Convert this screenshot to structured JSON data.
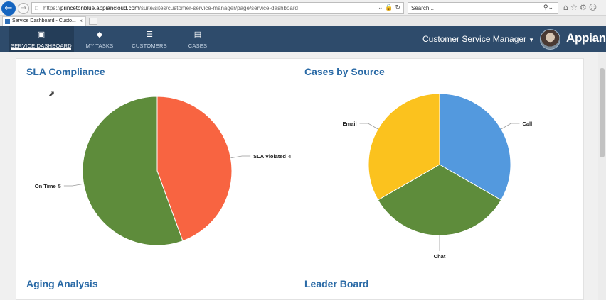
{
  "browser": {
    "url_prefix": "https://",
    "url_host": "princetonblue.appiancloud.com",
    "url_path": "/suite/sites/customer-service-manager/page/service-dashboard",
    "search_placeholder": "Search...",
    "tab_title": "Service Dashboard - Custo..."
  },
  "nav": {
    "items": [
      {
        "label": "SERVICE DASHBOARD",
        "icon": "bar-chart-icon"
      },
      {
        "label": "MY TASKS",
        "icon": "tag-icon"
      },
      {
        "label": "CUSTOMERS",
        "icon": "list-icon"
      },
      {
        "label": "CASES",
        "icon": "stack-icon"
      }
    ],
    "user": "Customer Service Manager",
    "brand": "Appian"
  },
  "sections": {
    "sla_title": "SLA Compliance",
    "source_title": "Cases by Source",
    "aging_title": "Aging Analysis",
    "leader_title": "Leader Board"
  },
  "chart_data": [
    {
      "type": "pie",
      "title": "SLA Compliance",
      "categories": [
        "SLA Violated",
        "On Time"
      ],
      "values": [
        4,
        5
      ],
      "colors": [
        "#f86441",
        "#5e8c3b"
      ],
      "show_values": true
    },
    {
      "type": "pie",
      "title": "Cases by Source",
      "categories": [
        "Call",
        "Chat",
        "Email"
      ],
      "values": [
        1,
        1,
        1
      ],
      "colors": [
        "#5399de",
        "#5e8c3b",
        "#fbc21e"
      ],
      "show_values": false
    }
  ]
}
